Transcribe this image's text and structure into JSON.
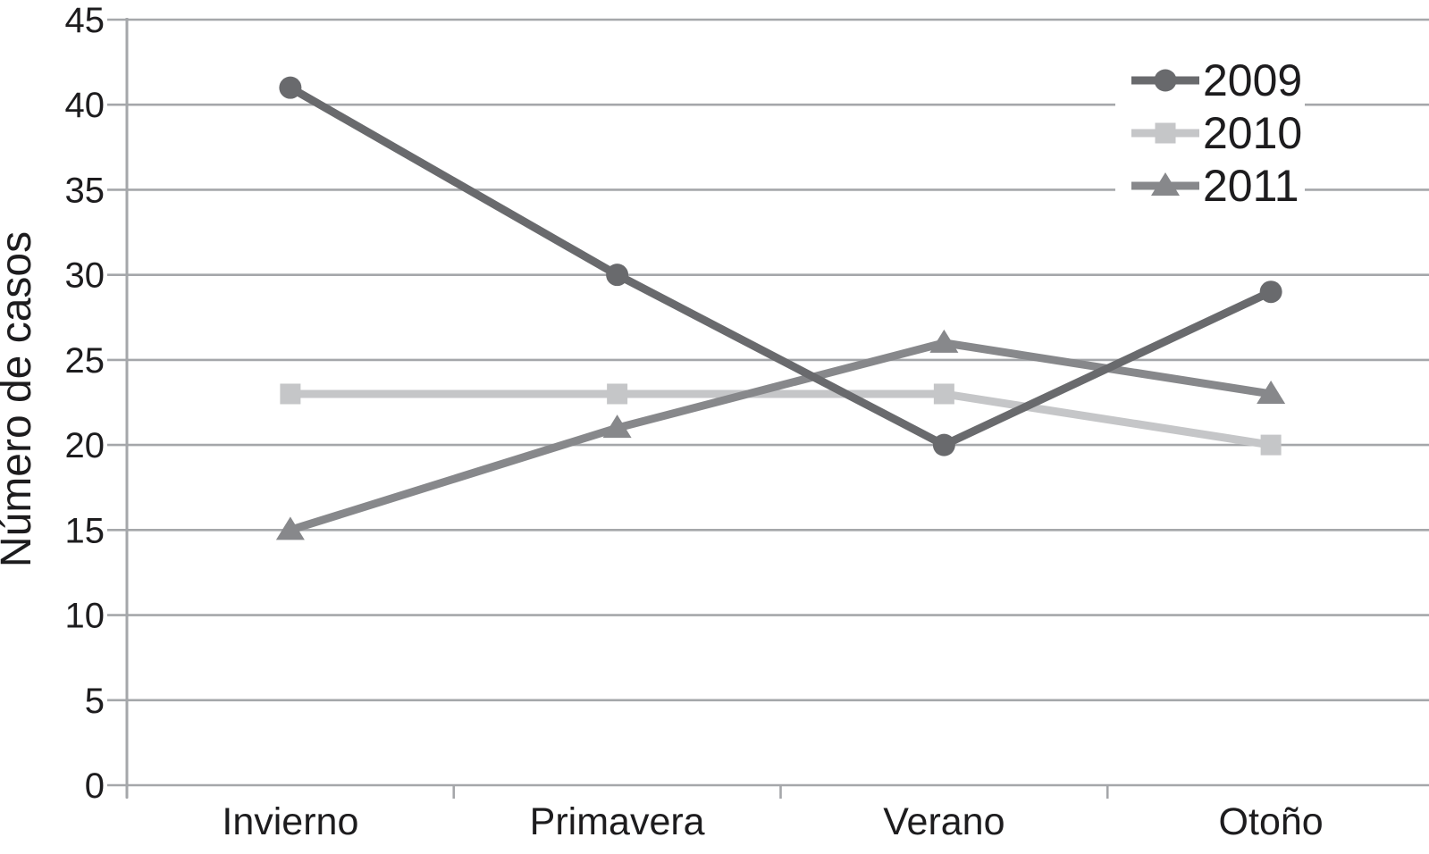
{
  "figure": {
    "background": "#ffffff"
  },
  "colors": {
    "grid": "#a5a7aa",
    "axis": "#a5a7aa",
    "text": "#1d1c1e",
    "legend_background": "#ffffff"
  },
  "chart_data": {
    "type": "line",
    "title": "",
    "xlabel": "",
    "ylabel": "Número de casos",
    "categories": [
      "Invierno",
      "Primavera",
      "Verano",
      "Otoño"
    ],
    "series": [
      {
        "name": "2009",
        "marker": "circle",
        "color": "#696a6d",
        "values": [
          41,
          30,
          20,
          29
        ]
      },
      {
        "name": "2010",
        "marker": "square",
        "color": "#c5c6c8",
        "values": [
          23,
          23,
          23,
          20
        ]
      },
      {
        "name": "2011",
        "marker": "triangle",
        "color": "#87888b",
        "values": [
          15,
          21,
          26,
          23
        ]
      }
    ],
    "ylim": [
      0,
      45
    ],
    "yticks": [
      0,
      5,
      10,
      15,
      20,
      25,
      30,
      35,
      40,
      45
    ],
    "grid": true,
    "legend_position": "top-right",
    "legend_entries": [
      "2009",
      "2010",
      "2011"
    ]
  }
}
